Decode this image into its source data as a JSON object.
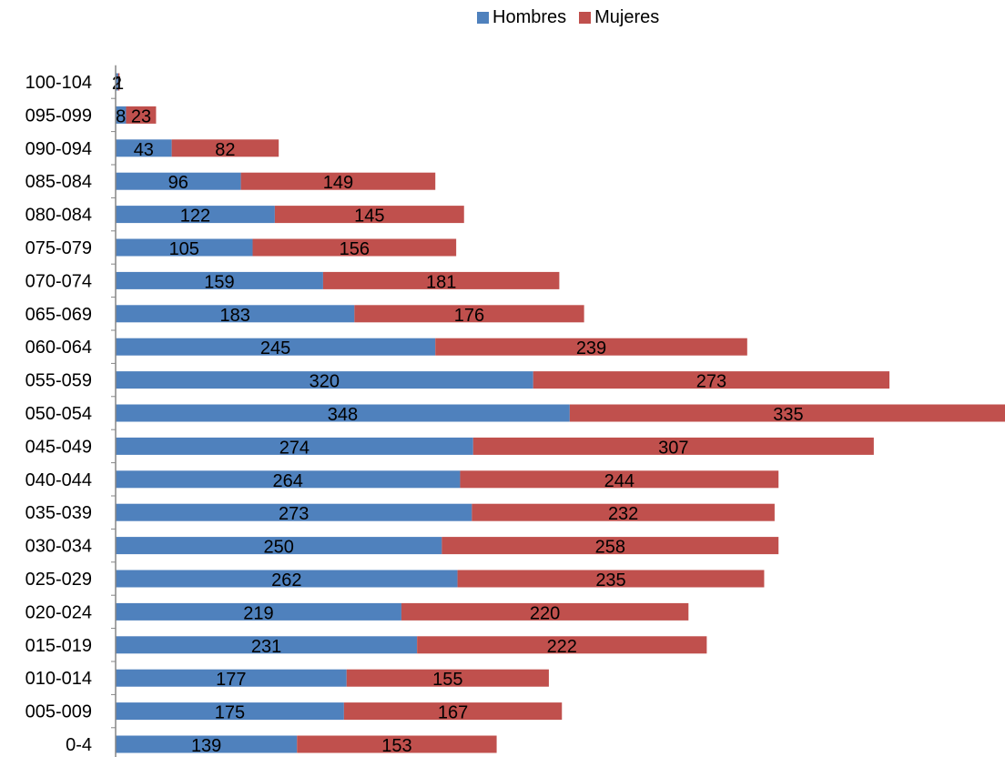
{
  "chart_data": {
    "type": "bar",
    "orientation": "horizontal",
    "stacked": true,
    "categories": [
      "0-4",
      "005-009",
      "010-014",
      "015-019",
      "020-024",
      "025-029",
      "030-034",
      "035-039",
      "040-044",
      "045-049",
      "050-054",
      "055-059",
      "060-064",
      "065-069",
      "070-074",
      "075-079",
      "080-084",
      "085-084",
      "090-094",
      "095-099",
      "100-104"
    ],
    "series": [
      {
        "name": "Hombres",
        "color": "#4f81bd",
        "values": [
          139,
          175,
          177,
          231,
          219,
          262,
          250,
          273,
          264,
          274,
          348,
          320,
          245,
          183,
          159,
          105,
          122,
          96,
          43,
          8,
          2
        ]
      },
      {
        "name": "Mujeres",
        "color": "#c0504d",
        "values": [
          153,
          167,
          155,
          222,
          220,
          235,
          258,
          232,
          244,
          307,
          335,
          273,
          239,
          176,
          181,
          156,
          145,
          149,
          82,
          23,
          1
        ]
      }
    ],
    "data_labels": true,
    "legend_position": "top",
    "xlim": [
      0,
      683
    ]
  }
}
